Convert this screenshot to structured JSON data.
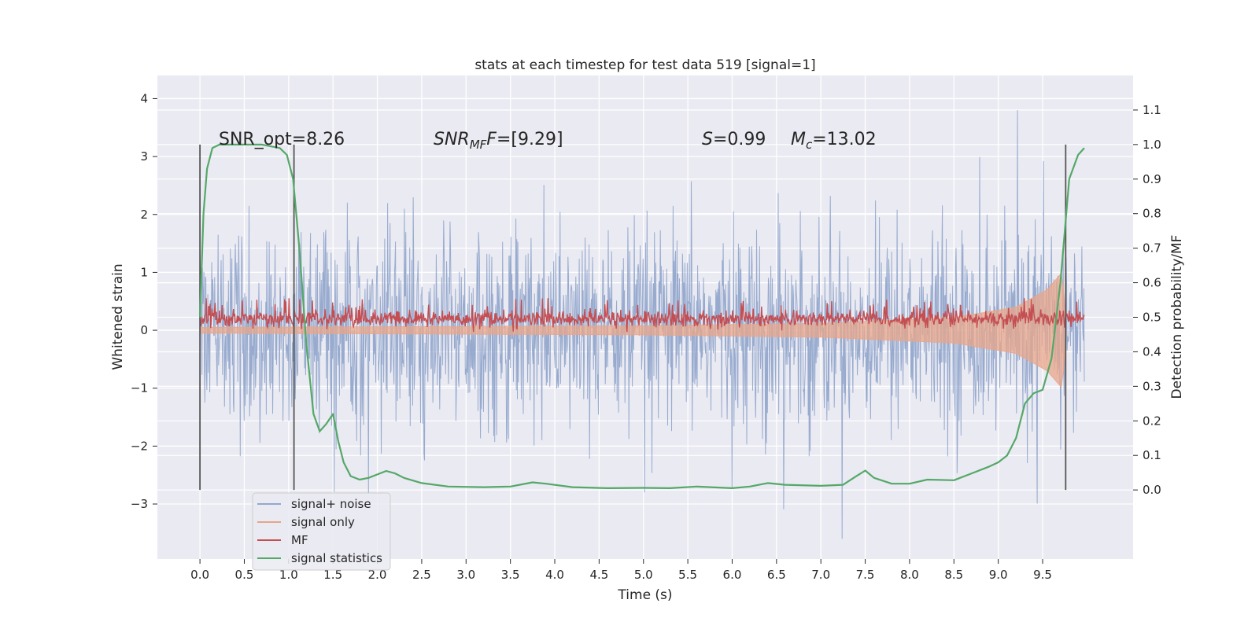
{
  "chart_data": {
    "type": "line",
    "title": "stats at each timestep for test data 519 [signal=1]",
    "xlabel": "Time (s)",
    "ylabel": "Whitened strain",
    "y2label": "Detection probability/MF",
    "xlim": [
      -0.48,
      10.52
    ],
    "ylim": [
      -3.95,
      4.4
    ],
    "y2lim": [
      -0.2,
      1.2
    ],
    "x_ticks": [
      0.0,
      0.5,
      1.0,
      1.5,
      2.0,
      2.5,
      3.0,
      3.5,
      4.0,
      4.5,
      5.0,
      5.5,
      6.0,
      6.5,
      7.0,
      7.5,
      8.0,
      8.5,
      9.0,
      9.5
    ],
    "x_tick_labels": [
      "0.0",
      "0.5",
      "1.0",
      "1.5",
      "2.0",
      "2.5",
      "3.0",
      "3.5",
      "4.0",
      "4.5",
      "5.0",
      "5.5",
      "6.0",
      "6.5",
      "7.0",
      "7.5",
      "8.0",
      "8.5",
      "9.0",
      "9.5"
    ],
    "y_ticks": [
      -3,
      -2,
      -1,
      0,
      1,
      2,
      3,
      4
    ],
    "y_tick_labels": [
      "−3",
      "−2",
      "−1",
      "0",
      "1",
      "2",
      "3",
      "4"
    ],
    "y2_ticks": [
      0.0,
      0.1,
      0.2,
      0.3,
      0.4,
      0.5,
      0.6,
      0.7,
      0.8,
      0.9,
      1.0,
      1.1
    ],
    "y2_tick_labels": [
      "0.0",
      "0.1",
      "0.2",
      "0.3",
      "0.4",
      "0.5",
      "0.6",
      "0.7",
      "0.8",
      "0.9",
      "1.0",
      "1.1"
    ],
    "grid": true,
    "legend_position": "lower-left",
    "annotations": {
      "snr_opt": "SNR_opt=8.26",
      "snr_mf_main": "SNR",
      "snr_mf_sub": "MF",
      "snr_mf_tail": "=[9.29]",
      "s_label": "S",
      "s_value": "=0.99",
      "mc_main": "M",
      "mc_sub": "c",
      "mc_value": "=13.02"
    },
    "vertical_markers": [
      0.0,
      1.06,
      9.76
    ],
    "series": [
      {
        "name": "signal+ noise",
        "color": "#94a8cc",
        "style": "noise band",
        "approx_band": [
          -1.5,
          1.5
        ],
        "peak_max": 4.05,
        "peak_min": -3.6
      },
      {
        "name": "signal only",
        "color": "#e8a58a",
        "style": "chirp envelope growing to end",
        "amplitude_envelope": [
          {
            "x": 0.0,
            "amp": 0.05
          },
          {
            "x": 5.0,
            "amp": 0.08
          },
          {
            "x": 7.0,
            "amp": 0.12
          },
          {
            "x": 8.5,
            "amp": 0.22
          },
          {
            "x": 9.2,
            "amp": 0.4
          },
          {
            "x": 9.55,
            "amp": 0.7
          },
          {
            "x": 9.72,
            "amp": 1.0
          },
          {
            "x": 9.76,
            "amp": 0.2
          }
        ]
      },
      {
        "name": "MF",
        "color": "#c44e52",
        "style": "narrow band on right axis",
        "approx_band": [
          0.46,
          0.53
        ]
      },
      {
        "name": "signal statistics",
        "color": "#55a868",
        "x": [
          0.0,
          0.04,
          0.08,
          0.14,
          0.22,
          0.35,
          0.5,
          0.7,
          0.9,
          0.98,
          1.05,
          1.12,
          1.2,
          1.28,
          1.35,
          1.42,
          1.5,
          1.56,
          1.62,
          1.7,
          1.8,
          1.9,
          2.0,
          2.1,
          2.2,
          2.3,
          2.5,
          2.8,
          3.2,
          3.5,
          3.75,
          3.9,
          4.2,
          4.6,
          5.0,
          5.3,
          5.6,
          6.0,
          6.2,
          6.4,
          6.6,
          7.0,
          7.25,
          7.4,
          7.5,
          7.6,
          7.8,
          8.0,
          8.2,
          8.5,
          8.7,
          8.9,
          9.0,
          9.1,
          9.2,
          9.3,
          9.4,
          9.5,
          9.6,
          9.7,
          9.8,
          9.9,
          9.97
        ],
        "y": [
          0.5,
          0.8,
          0.93,
          0.99,
          1.0,
          1.0,
          1.0,
          1.0,
          0.99,
          0.97,
          0.9,
          0.7,
          0.42,
          0.22,
          0.17,
          0.19,
          0.22,
          0.14,
          0.08,
          0.04,
          0.03,
          0.035,
          0.045,
          0.055,
          0.048,
          0.035,
          0.02,
          0.01,
          0.008,
          0.01,
          0.022,
          0.018,
          0.008,
          0.005,
          0.006,
          0.005,
          0.01,
          0.005,
          0.01,
          0.02,
          0.015,
          0.012,
          0.015,
          0.04,
          0.056,
          0.035,
          0.018,
          0.018,
          0.03,
          0.028,
          0.048,
          0.068,
          0.08,
          0.1,
          0.15,
          0.25,
          0.28,
          0.29,
          0.38,
          0.6,
          0.9,
          0.97,
          0.99
        ]
      }
    ]
  }
}
